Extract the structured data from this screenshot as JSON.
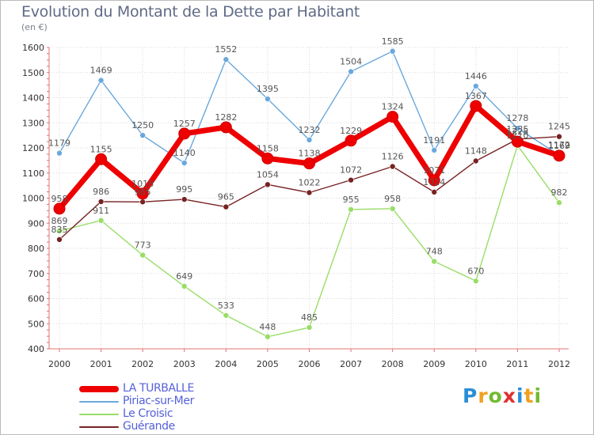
{
  "header": {
    "title": "Evolution du Montant de la Dette par Habitant",
    "unit": "(en €)"
  },
  "chart_data": {
    "type": "line",
    "title": "Evolution du Montant de la Dette par Habitant",
    "subtitle": "(en €)",
    "xlabel": "",
    "ylabel": "",
    "x": [
      "2000",
      "2001",
      "2002",
      "2003",
      "2004",
      "2005",
      "2006",
      "2007",
      "2008",
      "2009",
      "2010",
      "2011",
      "2012"
    ],
    "ylim": [
      400,
      1600
    ],
    "yticks": [
      400,
      500,
      600,
      700,
      800,
      900,
      1000,
      1100,
      1200,
      1300,
      1400,
      1500,
      1600
    ],
    "grid": true,
    "legend": "bottom-left",
    "series": [
      {
        "name": "LA TURBALLE",
        "color": "#ee0000",
        "width": 7,
        "marker": 7,
        "values": [
          958,
          1155,
          1018,
          1257,
          1282,
          1158,
          1138,
          1229,
          1324,
          1071,
          1367,
          1225,
          1169
        ],
        "labels": [
          "958",
          "1155",
          "1018",
          "1257",
          "1282",
          "1158",
          "1138",
          "1229",
          "1324",
          "1071",
          "1367",
          "1225",
          "1169"
        ]
      },
      {
        "name": "Piriac-sur-Mer",
        "color": "#6aa8dc",
        "width": 1.4,
        "marker": 3.5,
        "values": [
          1179,
          1469,
          1250,
          1140,
          1552,
          1395,
          1232,
          1504,
          1585,
          1191,
          1446,
          1278,
          1172
        ],
        "labels": [
          "1179",
          "1469",
          "1250",
          "1140",
          "1552",
          "1395",
          "1232",
          "1504",
          "1585",
          "1191",
          "1446",
          "1278",
          "1172"
        ]
      },
      {
        "name": "Le Croisic",
        "color": "#99dd66",
        "width": 1.4,
        "marker": 3.5,
        "values": [
          869,
          911,
          773,
          649,
          533,
          448,
          485,
          955,
          958,
          748,
          670,
          1210,
          982
        ],
        "labels": [
          "869",
          "911",
          "773",
          "649",
          "533",
          "448",
          "485",
          "955",
          "958",
          "748",
          "670",
          "1210",
          "982"
        ]
      },
      {
        "name": "Guérande",
        "color": "#772222",
        "width": 1.4,
        "marker": 3.5,
        "values": [
          835,
          986,
          985,
          995,
          965,
          1054,
          1022,
          1072,
          1126,
          1024,
          1148,
          1235,
          1245
        ],
        "labels": [
          "835",
          "986",
          "985",
          "995",
          "965",
          "1054",
          "1022",
          "1072",
          "1126",
          "1024",
          "1148",
          "1235",
          "1245"
        ]
      }
    ]
  },
  "legend": {
    "items": [
      {
        "label": "LA TURBALLE",
        "color": "#ee0000"
      },
      {
        "label": "Piriac-sur-Mer",
        "color": "#6aa8dc"
      },
      {
        "label": "Le Croisic",
        "color": "#99dd66"
      },
      {
        "label": "Guérande",
        "color": "#772222"
      }
    ]
  },
  "brand": {
    "letters": [
      "P",
      "r",
      "o",
      "x",
      "i",
      "t",
      "i"
    ],
    "colors": [
      "#2a8ed6",
      "#f0a020",
      "#70bb30",
      "#e03030",
      "#2a8ed6",
      "#f0a020",
      "#70bb30"
    ]
  }
}
